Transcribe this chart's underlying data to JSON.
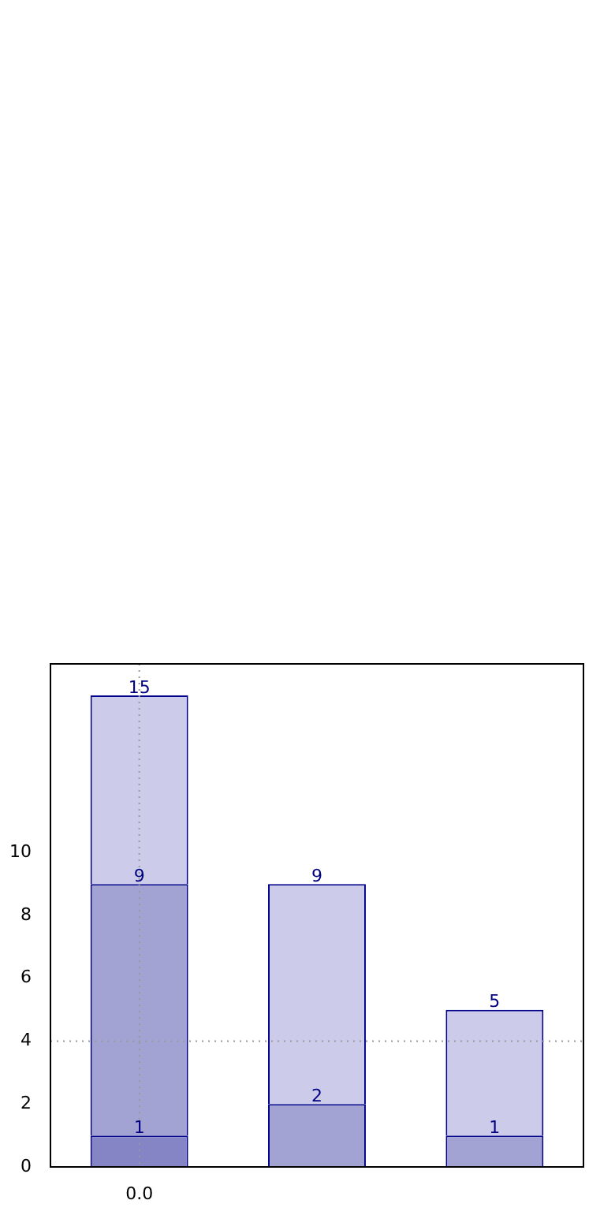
{
  "chart_data": {
    "type": "bar",
    "categories": [
      "0.0",
      null,
      null
    ],
    "stacked": true,
    "series": [
      {
        "colors": [
          "#8585c5",
          "#a3a3d3",
          "#a3a3d3"
        ],
        "values": [
          1,
          2,
          1
        ],
        "value_labels": [
          "1",
          "2",
          "1"
        ]
      },
      {
        "colors": [
          "#a3a3d3",
          "#ccccea",
          "#ccccea"
        ],
        "values": [
          8,
          7,
          4
        ]
      },
      {
        "colors": [
          "#ccccea",
          null,
          null
        ],
        "values": [
          6,
          null,
          null
        ]
      }
    ],
    "totals": [
      "15",
      "9",
      "5"
    ],
    "annotations": [
      {
        "text": "9",
        "x": "0.0",
        "y": 9
      }
    ],
    "ylim": [
      0,
      16
    ],
    "yticks": [
      0,
      2,
      4,
      6,
      8,
      10
    ],
    "ref_lines": [
      {
        "axis": "x",
        "value": "0.0",
        "color": "#999999",
        "line_style": "dotted"
      },
      {
        "axis": "y",
        "value": 4,
        "color": "#999999",
        "line_style": "dotted"
      }
    ]
  }
}
